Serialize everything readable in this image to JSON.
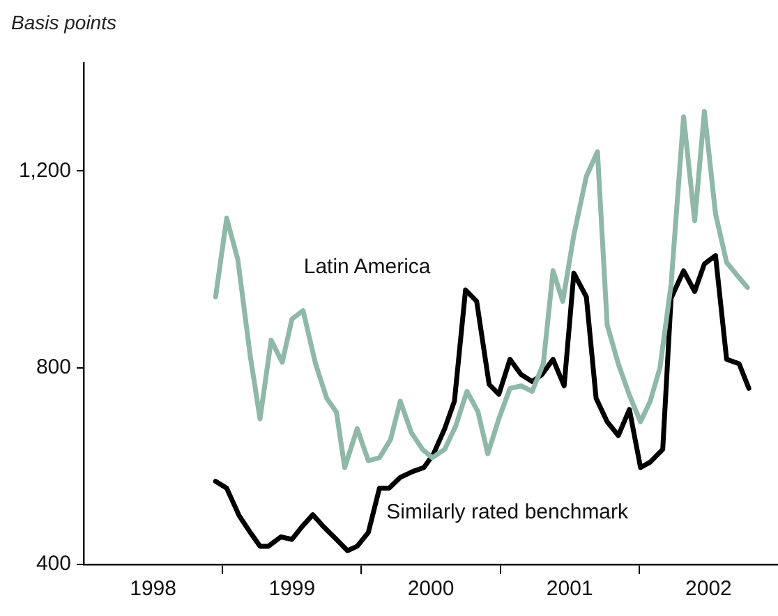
{
  "chart_data": {
    "type": "line",
    "ylabel": "Basis points",
    "xlim": [
      1998,
      2003
    ],
    "ylim": [
      400,
      1420
    ],
    "xticks": [
      {
        "value": 1998.5,
        "label": "1998"
      },
      {
        "value": 1999,
        "label": null
      },
      {
        "value": 1999.5,
        "label": "1999"
      },
      {
        "value": 2000,
        "label": null
      },
      {
        "value": 2000.5,
        "label": "2000"
      },
      {
        "value": 2001,
        "label": null
      },
      {
        "value": 2001.5,
        "label": "2001"
      },
      {
        "value": 2002,
        "label": null
      },
      {
        "value": 2002.5,
        "label": "2002"
      }
    ],
    "yticks": [
      400,
      800,
      {
        "value": 1200,
        "label": "1,200"
      }
    ],
    "grid": false,
    "marker": "none",
    "line_style": "solid",
    "series": [
      {
        "name": "Latin America",
        "color": "#8fb8a8",
        "x": [
          1998.95,
          1999.03,
          1999.11,
          1999.2,
          1999.27,
          1999.35,
          1999.43,
          1999.5,
          1999.58,
          1999.67,
          1999.75,
          1999.82,
          1999.88,
          1999.97,
          2000.05,
          2000.13,
          2000.21,
          2000.28,
          2000.36,
          2000.44,
          2000.51,
          2000.6,
          2000.68,
          2000.76,
          2000.84,
          2000.91,
          2000.99,
          2001.07,
          2001.15,
          2001.23,
          2001.31,
          2001.38,
          2001.45,
          2001.53,
          2001.62,
          2001.7,
          2001.77,
          2001.85,
          2001.93,
          2002.01,
          2002.08,
          2002.15,
          2002.23,
          2002.32,
          2002.4,
          2002.47,
          2002.55,
          2002.63,
          2002.72,
          2002.78
        ],
        "values": [
          944,
          1104,
          1020,
          823,
          696,
          856,
          811,
          899,
          916,
          808,
          738,
          710,
          597,
          676,
          611,
          617,
          654,
          732,
          668,
          634,
          617,
          634,
          682,
          752,
          710,
          625,
          696,
          758,
          763,
          752,
          808,
          997,
          935,
          1070,
          1189,
          1239,
          887,
          808,
          744,
          690,
          732,
          800,
          969,
          1310,
          1099,
          1321,
          1113,
          1014,
          983,
          963
        ]
      },
      {
        "name": "Similarly rated benchmark",
        "color": "#000000",
        "x": [
          1998.95,
          1999.03,
          1999.12,
          1999.2,
          1999.27,
          1999.33,
          1999.42,
          1999.5,
          1999.57,
          1999.65,
          1999.73,
          1999.82,
          1999.9,
          1999.97,
          2000.05,
          2000.13,
          2000.2,
          2000.28,
          2000.37,
          2000.45,
          2000.52,
          2000.6,
          2000.67,
          2000.75,
          2000.83,
          2000.92,
          2000.99,
          2001.07,
          2001.15,
          2001.23,
          2001.3,
          2001.38,
          2001.46,
          2001.53,
          2001.62,
          2001.69,
          2001.77,
          2001.85,
          2001.93,
          2002.01,
          2002.08,
          2002.17,
          2002.23,
          2002.32,
          2002.4,
          2002.47,
          2002.55,
          2002.63,
          2002.72,
          2002.79
        ],
        "values": [
          569,
          555,
          499,
          465,
          437,
          437,
          456,
          451,
          476,
          501,
          476,
          451,
          428,
          437,
          465,
          555,
          555,
          577,
          589,
          597,
          625,
          676,
          732,
          958,
          935,
          766,
          746,
          817,
          786,
          772,
          786,
          817,
          763,
          992,
          944,
          738,
          690,
          662,
          715,
          597,
          608,
          634,
          941,
          997,
          955,
          1011,
          1028,
          817,
          808,
          758
        ]
      }
    ]
  }
}
